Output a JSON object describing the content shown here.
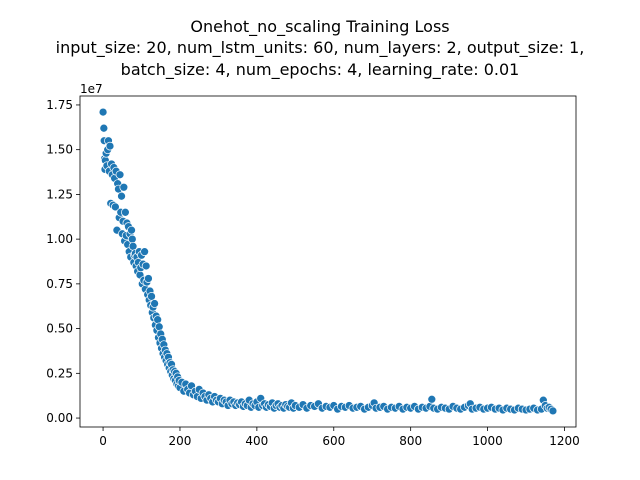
{
  "chart_data": {
    "type": "scatter",
    "title": "Onehot_no_scaling Training Loss",
    "subtitle_lines": [
      "input_size: 20, num_lstm_units: 60, num_layers: 2, output_size: 1,",
      "batch_size: 4, num_epochs: 4, learning_rate: 0.01"
    ],
    "xlabel": "",
    "ylabel": "",
    "y_offset_text": "1e7",
    "xlim": [
      -60,
      1230
    ],
    "ylim": [
      -500000,
      18000000
    ],
    "x_ticks": [
      0,
      200,
      400,
      600,
      800,
      1000,
      1200
    ],
    "x_tick_labels": [
      "0",
      "200",
      "400",
      "600",
      "800",
      "1000",
      "1200"
    ],
    "y_ticks": [
      0,
      2500000,
      5000000,
      7500000,
      10000000,
      12500000,
      15000000,
      17500000
    ],
    "y_tick_labels": [
      "0.00",
      "0.25",
      "0.50",
      "0.75",
      "1.00",
      "1.25",
      "1.50",
      "1.75"
    ],
    "grid": false,
    "legend": "none",
    "marker_color": "#1f77b4",
    "points": [
      [
        0,
        17100000
      ],
      [
        2,
        16200000
      ],
      [
        3,
        15500000
      ],
      [
        4,
        14500000
      ],
      [
        5,
        13900000
      ],
      [
        6,
        14400000
      ],
      [
        8,
        14800000
      ],
      [
        10,
        14100000
      ],
      [
        12,
        15000000
      ],
      [
        14,
        15500000
      ],
      [
        16,
        13800000
      ],
      [
        18,
        15200000
      ],
      [
        20,
        12000000
      ],
      [
        22,
        14200000
      ],
      [
        24,
        13600000
      ],
      [
        26,
        11900000
      ],
      [
        28,
        14000000
      ],
      [
        30,
        13400000
      ],
      [
        32,
        11800000
      ],
      [
        34,
        13800000
      ],
      [
        36,
        10500000
      ],
      [
        38,
        13100000
      ],
      [
        40,
        12800000
      ],
      [
        42,
        11200000
      ],
      [
        44,
        13600000
      ],
      [
        46,
        11500000
      ],
      [
        48,
        12400000
      ],
      [
        50,
        10300000
      ],
      [
        52,
        11000000
      ],
      [
        54,
        12900000
      ],
      [
        56,
        9900000
      ],
      [
        58,
        11500000
      ],
      [
        60,
        10200000
      ],
      [
        62,
        10900000
      ],
      [
        64,
        9700000
      ],
      [
        66,
        10700000
      ],
      [
        68,
        9300000
      ],
      [
        70,
        10300000
      ],
      [
        72,
        9000000
      ],
      [
        74,
        10500000
      ],
      [
        76,
        10000000
      ],
      [
        78,
        9600000
      ],
      [
        80,
        8700000
      ],
      [
        82,
        9100000
      ],
      [
        84,
        9200000
      ],
      [
        86,
        8500000
      ],
      [
        88,
        9000000
      ],
      [
        90,
        8200000
      ],
      [
        92,
        8700000
      ],
      [
        94,
        9300000
      ],
      [
        96,
        8000000
      ],
      [
        98,
        8400000
      ],
      [
        100,
        9100000
      ],
      [
        102,
        7500000
      ],
      [
        104,
        8600000
      ],
      [
        106,
        7700000
      ],
      [
        108,
        9300000
      ],
      [
        110,
        7200000
      ],
      [
        112,
        8500000
      ],
      [
        114,
        7600000
      ],
      [
        116,
        6900000
      ],
      [
        118,
        7800000
      ],
      [
        120,
        6600000
      ],
      [
        122,
        7100000
      ],
      [
        124,
        6300000
      ],
      [
        126,
        6800000
      ],
      [
        128,
        5900000
      ],
      [
        130,
        6200000
      ],
      [
        132,
        5600000
      ],
      [
        134,
        6400000
      ],
      [
        136,
        5200000
      ],
      [
        138,
        5700000
      ],
      [
        140,
        4900000
      ],
      [
        142,
        5500000
      ],
      [
        144,
        4500000
      ],
      [
        146,
        5100000
      ],
      [
        148,
        4200000
      ],
      [
        150,
        4700000
      ],
      [
        152,
        3900000
      ],
      [
        154,
        4400000
      ],
      [
        156,
        3600000
      ],
      [
        158,
        4100000
      ],
      [
        160,
        3400000
      ],
      [
        162,
        3800000
      ],
      [
        164,
        3200000
      ],
      [
        166,
        3600000
      ],
      [
        168,
        3000000
      ],
      [
        170,
        3400000
      ],
      [
        172,
        2800000
      ],
      [
        174,
        3100000
      ],
      [
        176,
        2600000
      ],
      [
        178,
        3000000
      ],
      [
        180,
        2400000
      ],
      [
        182,
        2700000
      ],
      [
        184,
        2200000
      ],
      [
        186,
        2600000
      ],
      [
        188,
        2100000
      ],
      [
        190,
        2500000
      ],
      [
        192,
        1900000
      ],
      [
        194,
        2300000
      ],
      [
        196,
        1800000
      ],
      [
        198,
        2100000
      ],
      [
        200,
        1700000
      ],
      [
        205,
        2000000
      ],
      [
        210,
        1500000
      ],
      [
        215,
        1900000
      ],
      [
        220,
        1600000
      ],
      [
        225,
        1400000
      ],
      [
        230,
        1800000
      ],
      [
        235,
        1300000
      ],
      [
        240,
        1500000
      ],
      [
        245,
        1200000
      ],
      [
        250,
        1600000
      ],
      [
        255,
        1100000
      ],
      [
        260,
        1400000
      ],
      [
        265,
        1200000
      ],
      [
        270,
        1000000
      ],
      [
        275,
        1300000
      ],
      [
        280,
        1100000
      ],
      [
        285,
        900000
      ],
      [
        290,
        1200000
      ],
      [
        295,
        1000000
      ],
      [
        300,
        900000
      ],
      [
        305,
        1100000
      ],
      [
        310,
        800000
      ],
      [
        315,
        1000000
      ],
      [
        320,
        900000
      ],
      [
        325,
        700000
      ],
      [
        330,
        1000000
      ],
      [
        335,
        800000
      ],
      [
        340,
        900000
      ],
      [
        345,
        700000
      ],
      [
        350,
        850000
      ],
      [
        355,
        750000
      ],
      [
        360,
        900000
      ],
      [
        365,
        650000
      ],
      [
        370,
        800000
      ],
      [
        375,
        700000
      ],
      [
        380,
        1000000
      ],
      [
        385,
        600000
      ],
      [
        390,
        800000
      ],
      [
        395,
        700000
      ],
      [
        400,
        900000
      ],
      [
        405,
        600000
      ],
      [
        410,
        1100000
      ],
      [
        415,
        700000
      ],
      [
        420,
        800000
      ],
      [
        425,
        600000
      ],
      [
        430,
        750000
      ],
      [
        435,
        650000
      ],
      [
        440,
        850000
      ],
      [
        445,
        550000
      ],
      [
        450,
        700000
      ],
      [
        455,
        800000
      ],
      [
        460,
        600000
      ],
      [
        465,
        700000
      ],
      [
        470,
        550000
      ],
      [
        475,
        750000
      ],
      [
        480,
        650000
      ],
      [
        485,
        600000
      ],
      [
        490,
        850000
      ],
      [
        495,
        550000
      ],
      [
        500,
        700000
      ],
      [
        510,
        600000
      ],
      [
        520,
        750000
      ],
      [
        530,
        550000
      ],
      [
        540,
        700000
      ],
      [
        550,
        650000
      ],
      [
        560,
        800000
      ],
      [
        570,
        550000
      ],
      [
        580,
        650000
      ],
      [
        590,
        600000
      ],
      [
        600,
        700000
      ],
      [
        610,
        500000
      ],
      [
        620,
        650000
      ],
      [
        630,
        600000
      ],
      [
        640,
        700000
      ],
      [
        650,
        550000
      ],
      [
        660,
        600000
      ],
      [
        670,
        650000
      ],
      [
        680,
        500000
      ],
      [
        690,
        600000
      ],
      [
        700,
        700000
      ],
      [
        705,
        850000
      ],
      [
        710,
        550000
      ],
      [
        720,
        600000
      ],
      [
        730,
        650000
      ],
      [
        740,
        500000
      ],
      [
        750,
        600000
      ],
      [
        760,
        550000
      ],
      [
        770,
        650000
      ],
      [
        780,
        500000
      ],
      [
        790,
        600000
      ],
      [
        800,
        550000
      ],
      [
        810,
        650000
      ],
      [
        820,
        500000
      ],
      [
        830,
        600000
      ],
      [
        840,
        550000
      ],
      [
        850,
        650000
      ],
      [
        855,
        1050000
      ],
      [
        860,
        550000
      ],
      [
        870,
        500000
      ],
      [
        880,
        600000
      ],
      [
        890,
        550000
      ],
      [
        900,
        500000
      ],
      [
        910,
        650000
      ],
      [
        920,
        550000
      ],
      [
        930,
        500000
      ],
      [
        940,
        600000
      ],
      [
        950,
        700000
      ],
      [
        955,
        800000
      ],
      [
        960,
        500000
      ],
      [
        970,
        550000
      ],
      [
        980,
        600000
      ],
      [
        990,
        500000
      ],
      [
        1000,
        550000
      ],
      [
        1010,
        600000
      ],
      [
        1020,
        500000
      ],
      [
        1030,
        550000
      ],
      [
        1040,
        450000
      ],
      [
        1050,
        550000
      ],
      [
        1060,
        500000
      ],
      [
        1070,
        450000
      ],
      [
        1080,
        550000
      ],
      [
        1090,
        500000
      ],
      [
        1100,
        450000
      ],
      [
        1110,
        500000
      ],
      [
        1120,
        550000
      ],
      [
        1130,
        450000
      ],
      [
        1140,
        500000
      ],
      [
        1145,
        1000000
      ],
      [
        1150,
        700000
      ],
      [
        1155,
        550000
      ],
      [
        1160,
        600000
      ],
      [
        1165,
        500000
      ],
      [
        1170,
        400000
      ]
    ]
  }
}
